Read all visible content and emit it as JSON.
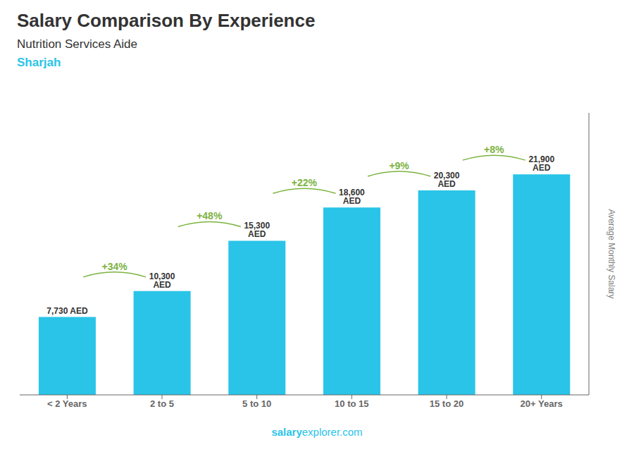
{
  "chart_data": {
    "type": "bar",
    "title": "Salary Comparison By Experience",
    "subtitle": "Nutrition Services Aide",
    "ylabel": "Average Monthly Salary",
    "categories": [
      "< 2 Years",
      "2 to 5",
      "5 to 10",
      "10 to 15",
      "15 to 20",
      "20+ Years"
    ],
    "values": [
      7730,
      10300,
      15300,
      18600,
      20300,
      21900
    ],
    "value_labels": [
      "7,730 AED",
      "10,300 AED",
      "15,300 AED",
      "18,600 AED",
      "20,300 AED",
      "21,900 AED"
    ],
    "data_labels": true,
    "color": "#29C4E8",
    "ylim": [
      0,
      28000
    ],
    "tick_labels": "x",
    "grid": false,
    "annotations": [
      {
        "text": "Sharjah"
      },
      {
        "text": "+34%",
        "from": "< 2 Years",
        "to": "2 to 5"
      },
      {
        "text": "+48%",
        "from": "2 to 5",
        "to": "5 to 10"
      },
      {
        "text": "+22%",
        "from": "5 to 10",
        "to": "10 to 15"
      },
      {
        "text": "+9%",
        "from": "10 to 15",
        "to": "15 to 20"
      },
      {
        "text": "+8%",
        "from": "15 to 20",
        "to": "20+ Years"
      },
      {
        "text": "salary"
      },
      {
        "text": "explorer.com"
      }
    ]
  }
}
